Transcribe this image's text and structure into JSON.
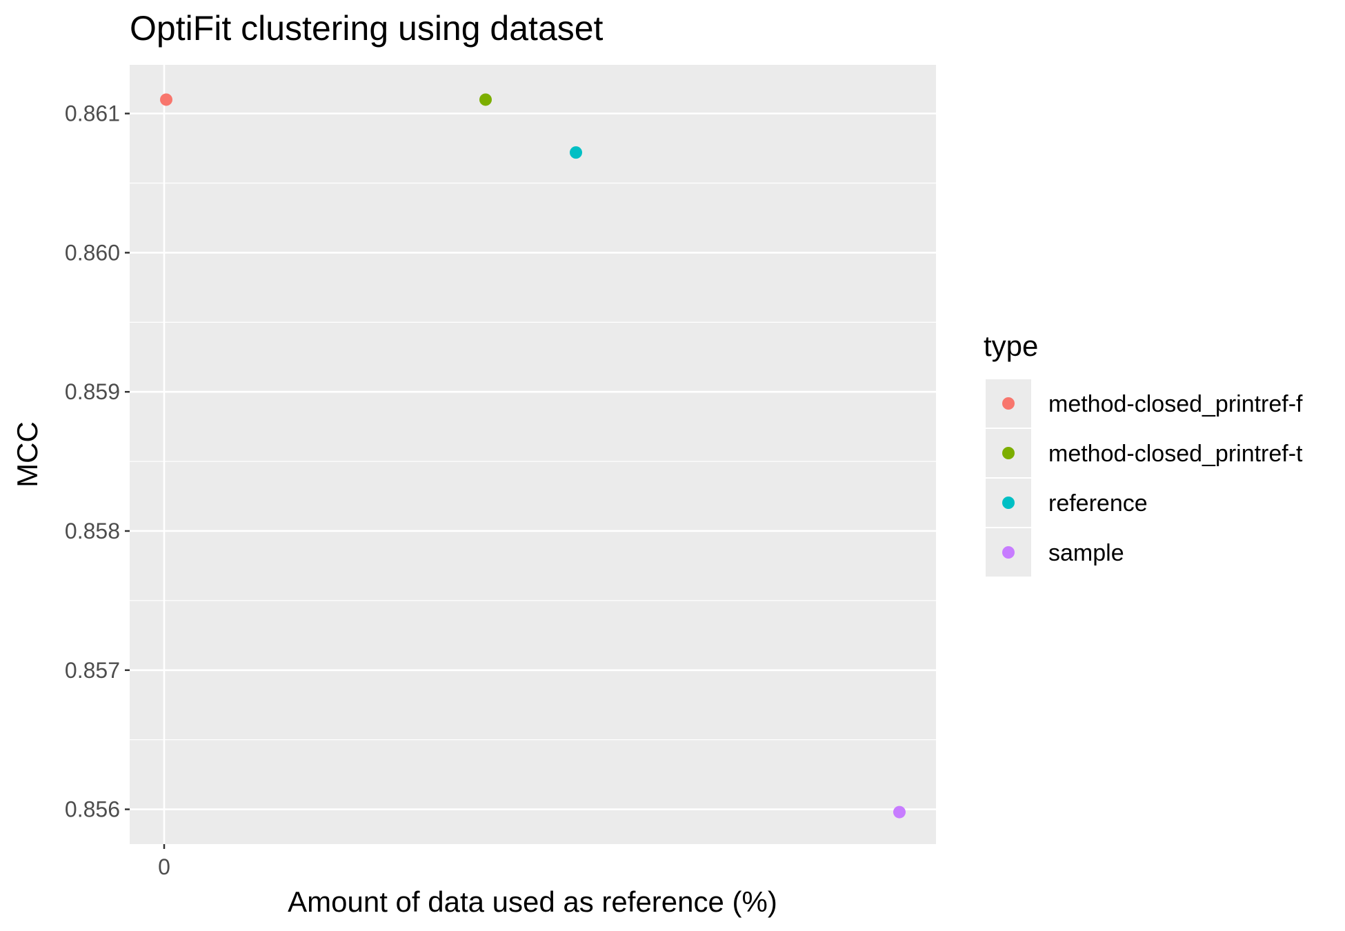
{
  "chart_data": {
    "type": "scatter",
    "title": "OptiFit clustering using  dataset",
    "xlabel": "Amount of data used as reference (%)",
    "ylabel": "MCC",
    "x_tick_labels": [
      "0"
    ],
    "y_ticks": [
      0.856,
      0.857,
      0.858,
      0.859,
      0.86,
      0.861
    ],
    "y_tick_labels": [
      "0.856",
      "0.857",
      "0.858",
      "0.859",
      "0.860",
      "0.861"
    ],
    "ylim": [
      0.85575,
      0.86135
    ],
    "legend": {
      "title": "type",
      "position": "right",
      "entries": [
        {
          "label": "method-closed_printref-f",
          "color": "#F8766D"
        },
        {
          "label": "method-closed_printref-t",
          "color": "#7CAE00"
        },
        {
          "label": "reference",
          "color": "#00BFC4"
        },
        {
          "label": "sample",
          "color": "#C77CFF"
        }
      ]
    },
    "points": [
      {
        "type": "method-closed_printref-f",
        "y": 0.8611
      },
      {
        "type": "method-closed_printref-t",
        "y": 0.8611
      },
      {
        "type": "reference",
        "y": 0.86072
      },
      {
        "type": "sample",
        "y": 0.85598
      }
    ],
    "grid": true,
    "panel_background": "#EBEBEB"
  }
}
